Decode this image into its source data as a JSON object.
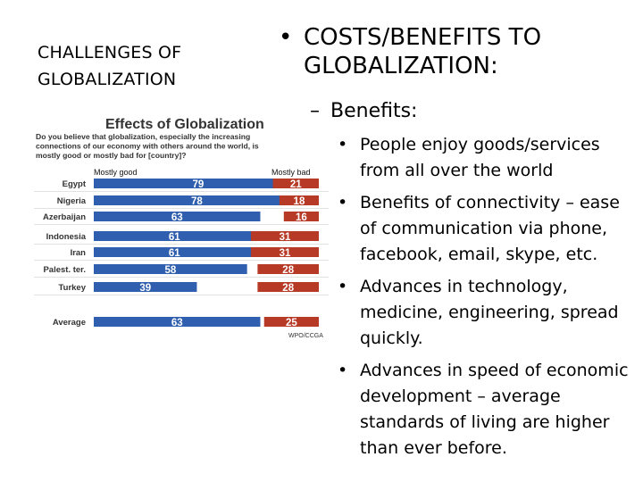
{
  "slide": {
    "title": "CHALLENGES OF GLOBALIZATION",
    "heading": "COSTS/BENEFITS TO GLOBALIZATION:",
    "subheading": "Benefits:",
    "bullet_char": "•",
    "dash_char": "–",
    "bullets": [
      "People enjoy goods/services from all over the world",
      "Benefits of connectivity – ease of communication via phone, facebook, email, skype, etc.",
      "Advances in technology, medicine, engineering, spread quickly.",
      "Advances in speed of economic development – average standards of living are higher than ever before."
    ]
  },
  "colors": {
    "good": "#2f5fae",
    "bad": "#b73a26",
    "title_text": "#333333"
  },
  "chart_data": {
    "type": "bar",
    "title": "Effects of Globalization",
    "subtitle": "Do you believe that globalization, especially the increasing connections of our economy with others around the world, is mostly good or mostly bad for [country]?",
    "source": "WPO/CCGA",
    "categories": [
      "Egypt",
      "Nigeria",
      "Azerbaijan",
      "Indonesia",
      "Iran",
      "Palest. ter.",
      "Turkey",
      "Average"
    ],
    "series": [
      {
        "name": "Mostly good",
        "values": [
          79,
          78,
          63,
          61,
          61,
          58,
          39,
          63
        ]
      },
      {
        "name": "Mostly bad",
        "values": [
          21,
          18,
          16,
          31,
          31,
          28,
          28,
          25
        ]
      }
    ],
    "xlim": [
      0,
      100
    ],
    "grid": false,
    "legend": "top"
  }
}
